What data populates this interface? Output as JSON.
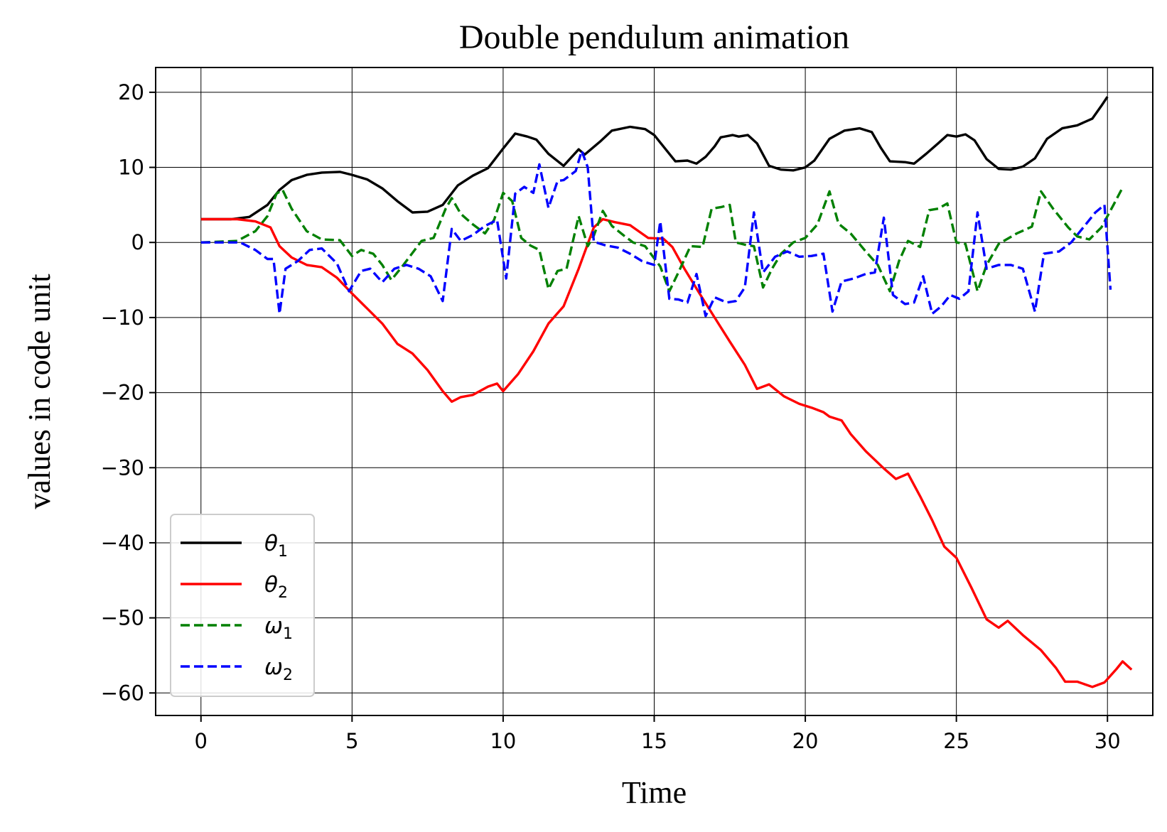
{
  "chart_data": {
    "type": "line",
    "title": "Double pendulum animation",
    "xlabel": "Time",
    "ylabel": "values in code unit",
    "xlim": [
      -1.5,
      31.5
    ],
    "ylim": [
      -63,
      23.3
    ],
    "xticks": [
      0,
      5,
      10,
      15,
      20,
      25,
      30
    ],
    "yticks": [
      20,
      10,
      0,
      -10,
      -20,
      -30,
      -40,
      -50,
      -60
    ],
    "tick_labels_x": [
      "0",
      "5",
      "10",
      "15",
      "20",
      "25",
      "30"
    ],
    "tick_labels_y": [
      "20",
      "10",
      "0",
      "−10",
      "−20",
      "−30",
      "−40",
      "−50",
      "−60"
    ],
    "grid": true,
    "legend": "bottom-left",
    "series": [
      {
        "name": "θ",
        "subscript": "1",
        "color": "#000000",
        "dash": "solid",
        "points": [
          [
            0,
            3.1
          ],
          [
            1,
            3.1
          ],
          [
            1.6,
            3.4
          ],
          [
            2.2,
            5
          ],
          [
            2.6,
            7
          ],
          [
            3,
            8.3
          ],
          [
            3.5,
            9
          ],
          [
            4,
            9.3
          ],
          [
            4.6,
            9.4
          ],
          [
            5,
            9
          ],
          [
            5.5,
            8.4
          ],
          [
            6,
            7.2
          ],
          [
            6.5,
            5.5
          ],
          [
            7,
            4
          ],
          [
            7.5,
            4.1
          ],
          [
            8,
            5
          ],
          [
            8.5,
            7.6
          ],
          [
            9,
            8.9
          ],
          [
            9.5,
            9.9
          ],
          [
            10,
            12.5
          ],
          [
            10.4,
            14.5
          ],
          [
            10.8,
            14.1
          ],
          [
            11.1,
            13.7
          ],
          [
            11.5,
            11.8
          ],
          [
            12,
            10.2
          ],
          [
            12.5,
            12.4
          ],
          [
            12.7,
            11.7
          ],
          [
            13.2,
            13.4
          ],
          [
            13.6,
            14.9
          ],
          [
            14.2,
            15.4
          ],
          [
            14.7,
            15.1
          ],
          [
            15,
            14.3
          ],
          [
            15.4,
            12.3
          ],
          [
            15.7,
            10.8
          ],
          [
            16.1,
            10.9
          ],
          [
            16.4,
            10.5
          ],
          [
            16.7,
            11.4
          ],
          [
            17,
            12.8
          ],
          [
            17.2,
            14
          ],
          [
            17.6,
            14.3
          ],
          [
            17.8,
            14.1
          ],
          [
            18.1,
            14.3
          ],
          [
            18.4,
            13.2
          ],
          [
            18.8,
            10.2
          ],
          [
            19.2,
            9.7
          ],
          [
            19.6,
            9.6
          ],
          [
            20,
            10
          ],
          [
            20.3,
            10.9
          ],
          [
            20.8,
            13.8
          ],
          [
            21.3,
            14.9
          ],
          [
            21.8,
            15.2
          ],
          [
            22.2,
            14.7
          ],
          [
            22.5,
            12.6
          ],
          [
            22.8,
            10.8
          ],
          [
            23.3,
            10.7
          ],
          [
            23.6,
            10.5
          ],
          [
            24,
            11.8
          ],
          [
            24.4,
            13.2
          ],
          [
            24.7,
            14.3
          ],
          [
            25,
            14.1
          ],
          [
            25.3,
            14.4
          ],
          [
            25.6,
            13.6
          ],
          [
            26,
            11.1
          ],
          [
            26.4,
            9.8
          ],
          [
            26.8,
            9.7
          ],
          [
            27.2,
            10.1
          ],
          [
            27.6,
            11.2
          ],
          [
            28,
            13.8
          ],
          [
            28.5,
            15.2
          ],
          [
            29,
            15.6
          ],
          [
            29.5,
            16.5
          ],
          [
            29.8,
            18.2
          ],
          [
            30,
            19.4
          ]
        ]
      },
      {
        "name": "θ",
        "subscript": "2",
        "color": "#ff0000",
        "dash": "solid",
        "points": [
          [
            0,
            3.1
          ],
          [
            1.2,
            3.1
          ],
          [
            1.8,
            2.8
          ],
          [
            2.3,
            2
          ],
          [
            2.6,
            -0.5
          ],
          [
            3,
            -2
          ],
          [
            3.5,
            -3
          ],
          [
            4,
            -3.3
          ],
          [
            4.5,
            -4.7
          ],
          [
            5,
            -6.8
          ],
          [
            5.5,
            -8.8
          ],
          [
            6,
            -10.8
          ],
          [
            6.5,
            -13.5
          ],
          [
            7,
            -14.8
          ],
          [
            7.5,
            -17
          ],
          [
            8,
            -19.8
          ],
          [
            8.3,
            -21.2
          ],
          [
            8.6,
            -20.6
          ],
          [
            9,
            -20.3
          ],
          [
            9.5,
            -19.2
          ],
          [
            9.8,
            -18.8
          ],
          [
            10,
            -19.8
          ],
          [
            10.5,
            -17.5
          ],
          [
            11,
            -14.5
          ],
          [
            11.5,
            -10.8
          ],
          [
            12,
            -8.5
          ],
          [
            12.5,
            -3.5
          ],
          [
            13,
            2
          ],
          [
            13.3,
            3.1
          ],
          [
            13.7,
            2.7
          ],
          [
            14.2,
            2.3
          ],
          [
            14.8,
            0.6
          ],
          [
            15.3,
            0.5
          ],
          [
            15.6,
            -0.6
          ],
          [
            16,
            -3.5
          ],
          [
            16.5,
            -6.8
          ],
          [
            17,
            -10
          ],
          [
            17.5,
            -13.2
          ],
          [
            18,
            -16.3
          ],
          [
            18.4,
            -19.5
          ],
          [
            18.8,
            -18.9
          ],
          [
            19.3,
            -20.5
          ],
          [
            19.8,
            -21.5
          ],
          [
            20.2,
            -22
          ],
          [
            20.6,
            -22.6
          ],
          [
            20.8,
            -23.2
          ],
          [
            21.2,
            -23.7
          ],
          [
            21.5,
            -25.5
          ],
          [
            22,
            -27.8
          ],
          [
            22.6,
            -30.1
          ],
          [
            23,
            -31.5
          ],
          [
            23.4,
            -30.8
          ],
          [
            23.8,
            -33.8
          ],
          [
            24.2,
            -37
          ],
          [
            24.6,
            -40.5
          ],
          [
            25,
            -42
          ],
          [
            25.5,
            -46
          ],
          [
            26,
            -50.2
          ],
          [
            26.4,
            -51.3
          ],
          [
            26.7,
            -50.4
          ],
          [
            27.2,
            -52.3
          ],
          [
            27.8,
            -54.3
          ],
          [
            28.3,
            -56.7
          ],
          [
            28.6,
            -58.5
          ],
          [
            29,
            -58.5
          ],
          [
            29.5,
            -59.2
          ],
          [
            29.9,
            -58.6
          ],
          [
            30.3,
            -56.8
          ],
          [
            30.5,
            -55.8
          ],
          [
            30.8,
            -56.9
          ]
        ]
      },
      {
        "name": "ω",
        "subscript": "1",
        "color": "#008000",
        "dash": "dashed",
        "points": [
          [
            0,
            0
          ],
          [
            1.2,
            0.2
          ],
          [
            1.8,
            1.5
          ],
          [
            2.2,
            3.5
          ],
          [
            2.5,
            6.5
          ],
          [
            2.7,
            7
          ],
          [
            3,
            4.5
          ],
          [
            3.5,
            1.5
          ],
          [
            4,
            0.4
          ],
          [
            4.6,
            0.3
          ],
          [
            5,
            -1.8
          ],
          [
            5.3,
            -1
          ],
          [
            5.7,
            -1.5
          ],
          [
            6,
            -3
          ],
          [
            6.3,
            -5
          ],
          [
            6.7,
            -3
          ],
          [
            7.3,
            0.2
          ],
          [
            7.7,
            0.6
          ],
          [
            8.1,
            4.5
          ],
          [
            8.3,
            5.9
          ],
          [
            8.6,
            3.8
          ],
          [
            9,
            2.4
          ],
          [
            9.4,
            1.2
          ],
          [
            9.7,
            3
          ],
          [
            10,
            6.6
          ],
          [
            10.3,
            5.5
          ],
          [
            10.6,
            0.6
          ],
          [
            10.9,
            -0.4
          ],
          [
            11.2,
            -1
          ],
          [
            11.5,
            -6.2
          ],
          [
            11.8,
            -3.8
          ],
          [
            12.1,
            -3.5
          ],
          [
            12.5,
            3.5
          ],
          [
            12.8,
            -0.5
          ],
          [
            13,
            0.9
          ],
          [
            13.3,
            4.2
          ],
          [
            13.6,
            2.2
          ],
          [
            14,
            0.9
          ],
          [
            14.3,
            0
          ],
          [
            14.7,
            -0.5
          ],
          [
            15.2,
            -3.2
          ],
          [
            15.5,
            -6.5
          ],
          [
            15.8,
            -4
          ],
          [
            16.2,
            -0.5
          ],
          [
            16.6,
            -0.6
          ],
          [
            16.9,
            4.5
          ],
          [
            17.2,
            4.7
          ],
          [
            17.5,
            5
          ],
          [
            17.7,
            0
          ],
          [
            18,
            -0.3
          ],
          [
            18.3,
            -0.5
          ],
          [
            18.6,
            -6
          ],
          [
            18.9,
            -3.5
          ],
          [
            19.2,
            -1.5
          ],
          [
            19.6,
            0
          ],
          [
            20,
            0.6
          ],
          [
            20.4,
            2.4
          ],
          [
            20.8,
            6.8
          ],
          [
            21.1,
            2.5
          ],
          [
            21.5,
            1.2
          ],
          [
            22,
            -1.2
          ],
          [
            22.4,
            -3
          ],
          [
            22.8,
            -6.5
          ],
          [
            23.1,
            -2.5
          ],
          [
            23.4,
            0.2
          ],
          [
            23.8,
            -0.6
          ],
          [
            24.1,
            4.3
          ],
          [
            24.4,
            4.5
          ],
          [
            24.7,
            5.2
          ],
          [
            25,
            0
          ],
          [
            25.3,
            -0.2
          ],
          [
            25.7,
            -6.5
          ],
          [
            26,
            -3
          ],
          [
            26.4,
            -0.2
          ],
          [
            27,
            1.2
          ],
          [
            27.5,
            2.1
          ],
          [
            27.8,
            6.8
          ],
          [
            28.2,
            4.5
          ],
          [
            28.7,
            2
          ],
          [
            29,
            0.8
          ],
          [
            29.4,
            0.4
          ],
          [
            29.8,
            2
          ],
          [
            30.2,
            5
          ],
          [
            30.5,
            7.3
          ]
        ]
      },
      {
        "name": "ω",
        "subscript": "2",
        "color": "#0000ff",
        "dash": "dashed",
        "points": [
          [
            0,
            0
          ],
          [
            1.3,
            0
          ],
          [
            1.8,
            -1
          ],
          [
            2.2,
            -2.2
          ],
          [
            2.4,
            -2.2
          ],
          [
            2.6,
            -9.5
          ],
          [
            2.8,
            -3.5
          ],
          [
            3.2,
            -2.5
          ],
          [
            3.6,
            -1
          ],
          [
            4,
            -0.8
          ],
          [
            4.5,
            -2.8
          ],
          [
            4.9,
            -6.5
          ],
          [
            5.3,
            -3.8
          ],
          [
            5.6,
            -3.5
          ],
          [
            6,
            -5.3
          ],
          [
            6.4,
            -3.5
          ],
          [
            6.8,
            -3
          ],
          [
            7.2,
            -3.5
          ],
          [
            7.6,
            -4.5
          ],
          [
            8,
            -7.8
          ],
          [
            8.3,
            1.8
          ],
          [
            8.6,
            0.2
          ],
          [
            9,
            1
          ],
          [
            9.4,
            2.2
          ],
          [
            9.8,
            3
          ],
          [
            10.1,
            -4.8
          ],
          [
            10.4,
            6.5
          ],
          [
            10.7,
            7.4
          ],
          [
            11,
            6.6
          ],
          [
            11.2,
            10.4
          ],
          [
            11.5,
            4.6
          ],
          [
            11.8,
            8.2
          ],
          [
            12,
            8.3
          ],
          [
            12.4,
            9.5
          ],
          [
            12.6,
            12.2
          ],
          [
            12.8,
            10
          ],
          [
            13,
            0.1
          ],
          [
            13.4,
            -0.4
          ],
          [
            13.8,
            -0.7
          ],
          [
            14.2,
            -1.5
          ],
          [
            14.6,
            -2.5
          ],
          [
            15,
            -3
          ],
          [
            15.2,
            2.8
          ],
          [
            15.5,
            -7.5
          ],
          [
            15.8,
            -7.6
          ],
          [
            16.1,
            -8
          ],
          [
            16.4,
            -4.2
          ],
          [
            16.7,
            -9.8
          ],
          [
            17,
            -7.3
          ],
          [
            17.4,
            -8
          ],
          [
            17.7,
            -7.8
          ],
          [
            18,
            -6
          ],
          [
            18.3,
            4
          ],
          [
            18.6,
            -4
          ],
          [
            19,
            -1.9
          ],
          [
            19.4,
            -1.2
          ],
          [
            19.8,
            -1.9
          ],
          [
            20.2,
            -1.8
          ],
          [
            20.6,
            -1.5
          ],
          [
            20.9,
            -9.2
          ],
          [
            21.2,
            -5.2
          ],
          [
            21.6,
            -4.8
          ],
          [
            22,
            -4.2
          ],
          [
            22.3,
            -4
          ],
          [
            22.6,
            3.3
          ],
          [
            22.9,
            -7
          ],
          [
            23.3,
            -8.2
          ],
          [
            23.6,
            -8
          ],
          [
            23.9,
            -4.5
          ],
          [
            24.2,
            -9.5
          ],
          [
            24.5,
            -8.5
          ],
          [
            24.8,
            -7
          ],
          [
            25.1,
            -7.5
          ],
          [
            25.4,
            -6.5
          ],
          [
            25.7,
            4
          ],
          [
            26,
            -3.5
          ],
          [
            26.4,
            -3
          ],
          [
            26.8,
            -3
          ],
          [
            27.2,
            -3.5
          ],
          [
            27.6,
            -9.2
          ],
          [
            27.9,
            -1.5
          ],
          [
            28.4,
            -1.2
          ],
          [
            28.8,
            0
          ],
          [
            29.2,
            2
          ],
          [
            29.6,
            4
          ],
          [
            29.9,
            5
          ],
          [
            30.1,
            -6.3
          ]
        ]
      }
    ]
  }
}
